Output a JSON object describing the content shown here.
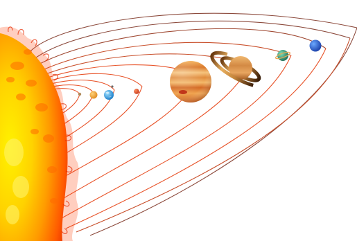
{
  "scene": {
    "subject": "solar-system-illustration",
    "background": "#ffffff"
  },
  "sun": {
    "icon": "sun-icon",
    "colors": [
      "#fff200",
      "#ffd200",
      "#ff9a00",
      "#ff5a00",
      "#e62a00"
    ]
  },
  "orbits": {
    "colors": [
      "#e8542a",
      "#c9502c",
      "#8c4a3c"
    ]
  },
  "planets": [
    {
      "name": "mercury",
      "color": "#b08a5a"
    },
    {
      "name": "venus",
      "color": "#f2a23a"
    },
    {
      "name": "earth",
      "color": "#3aa0e0"
    },
    {
      "name": "mars",
      "color": "#e0502a"
    },
    {
      "name": "jupiter",
      "color": "#e8953e"
    },
    {
      "name": "saturn",
      "color": "#d9964a"
    },
    {
      "name": "uranus",
      "color": "#2f9a7a"
    },
    {
      "name": "neptune",
      "color": "#2c6bd1"
    }
  ]
}
